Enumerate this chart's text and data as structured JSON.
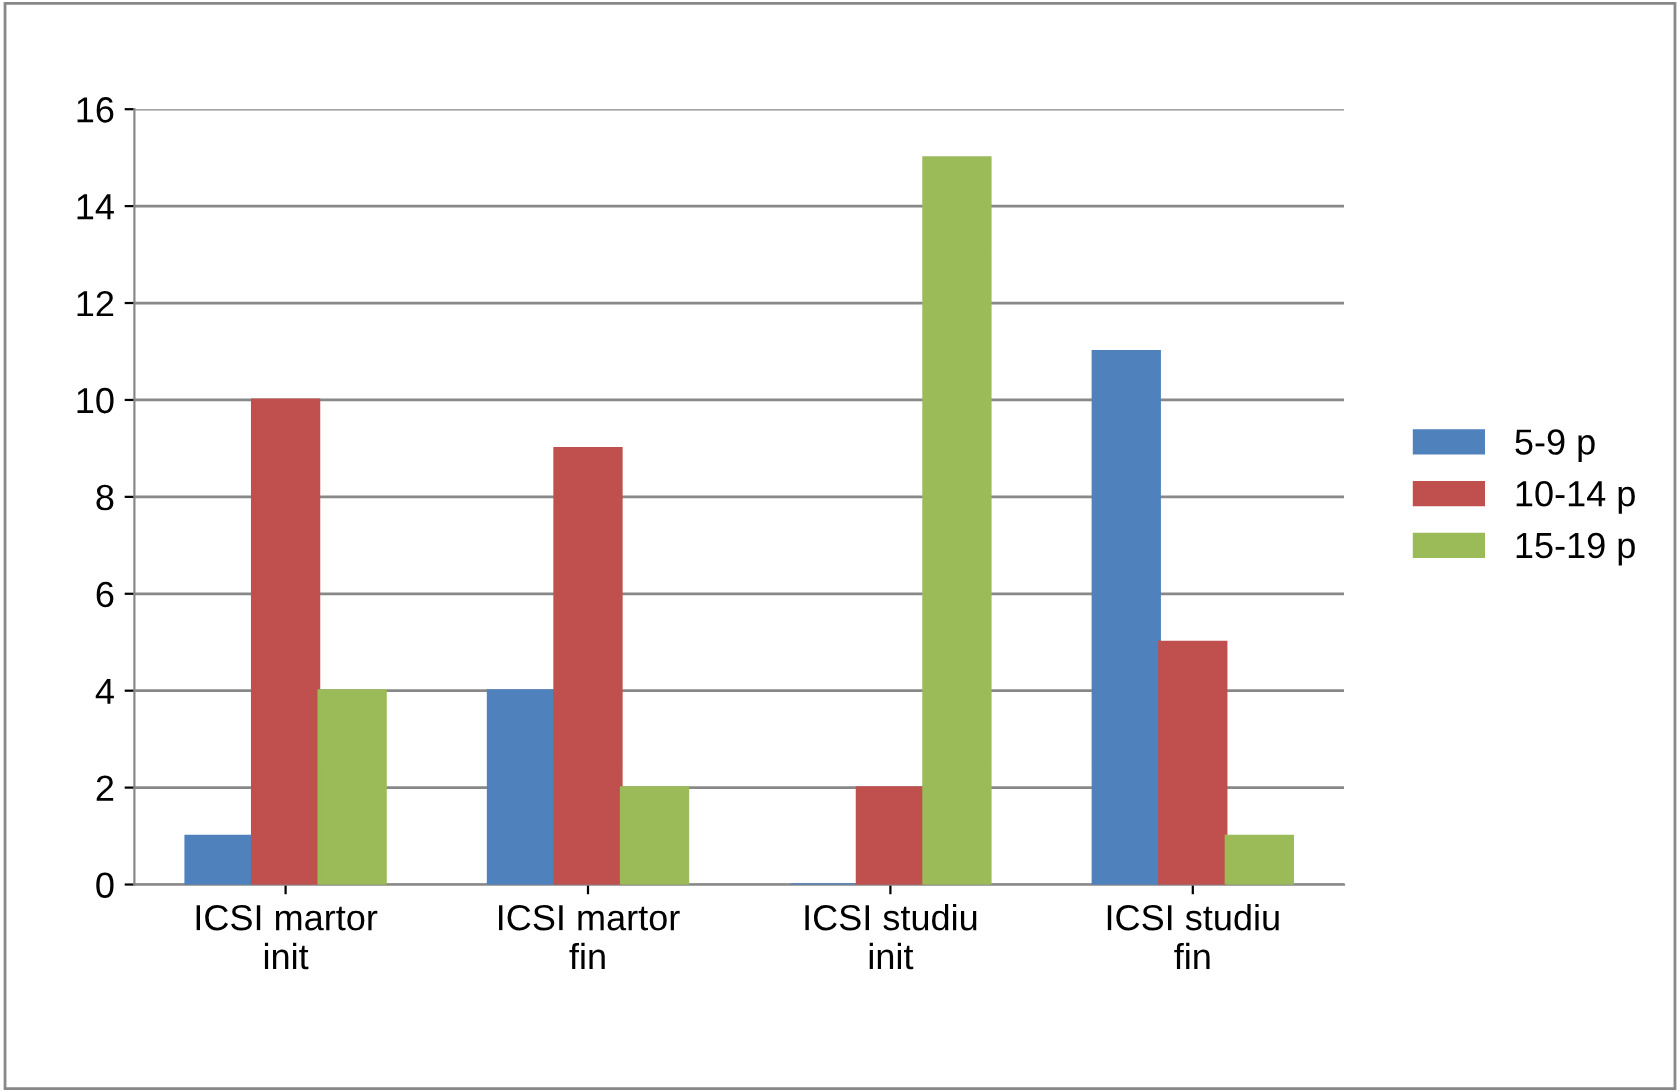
{
  "chart_data": {
    "type": "bar",
    "categories": [
      "ICSI martor init",
      "ICSI martor fin",
      "ICSI studiu init",
      "ICSI studiu fin"
    ],
    "series": [
      {
        "name": "5-9 p",
        "color": "#4f81bd",
        "values": [
          1,
          4,
          0,
          11
        ]
      },
      {
        "name": "10-14 p",
        "color": "#c0504d",
        "values": [
          10,
          9,
          2,
          5
        ]
      },
      {
        "name": "15-19 p",
        "color": "#9bbb59",
        "values": [
          4,
          2,
          15,
          1
        ]
      }
    ],
    "ylim": [
      0,
      16
    ],
    "yticks": [
      0,
      2,
      4,
      6,
      8,
      10,
      12,
      14,
      16
    ],
    "grid": "y",
    "legend": "right"
  }
}
